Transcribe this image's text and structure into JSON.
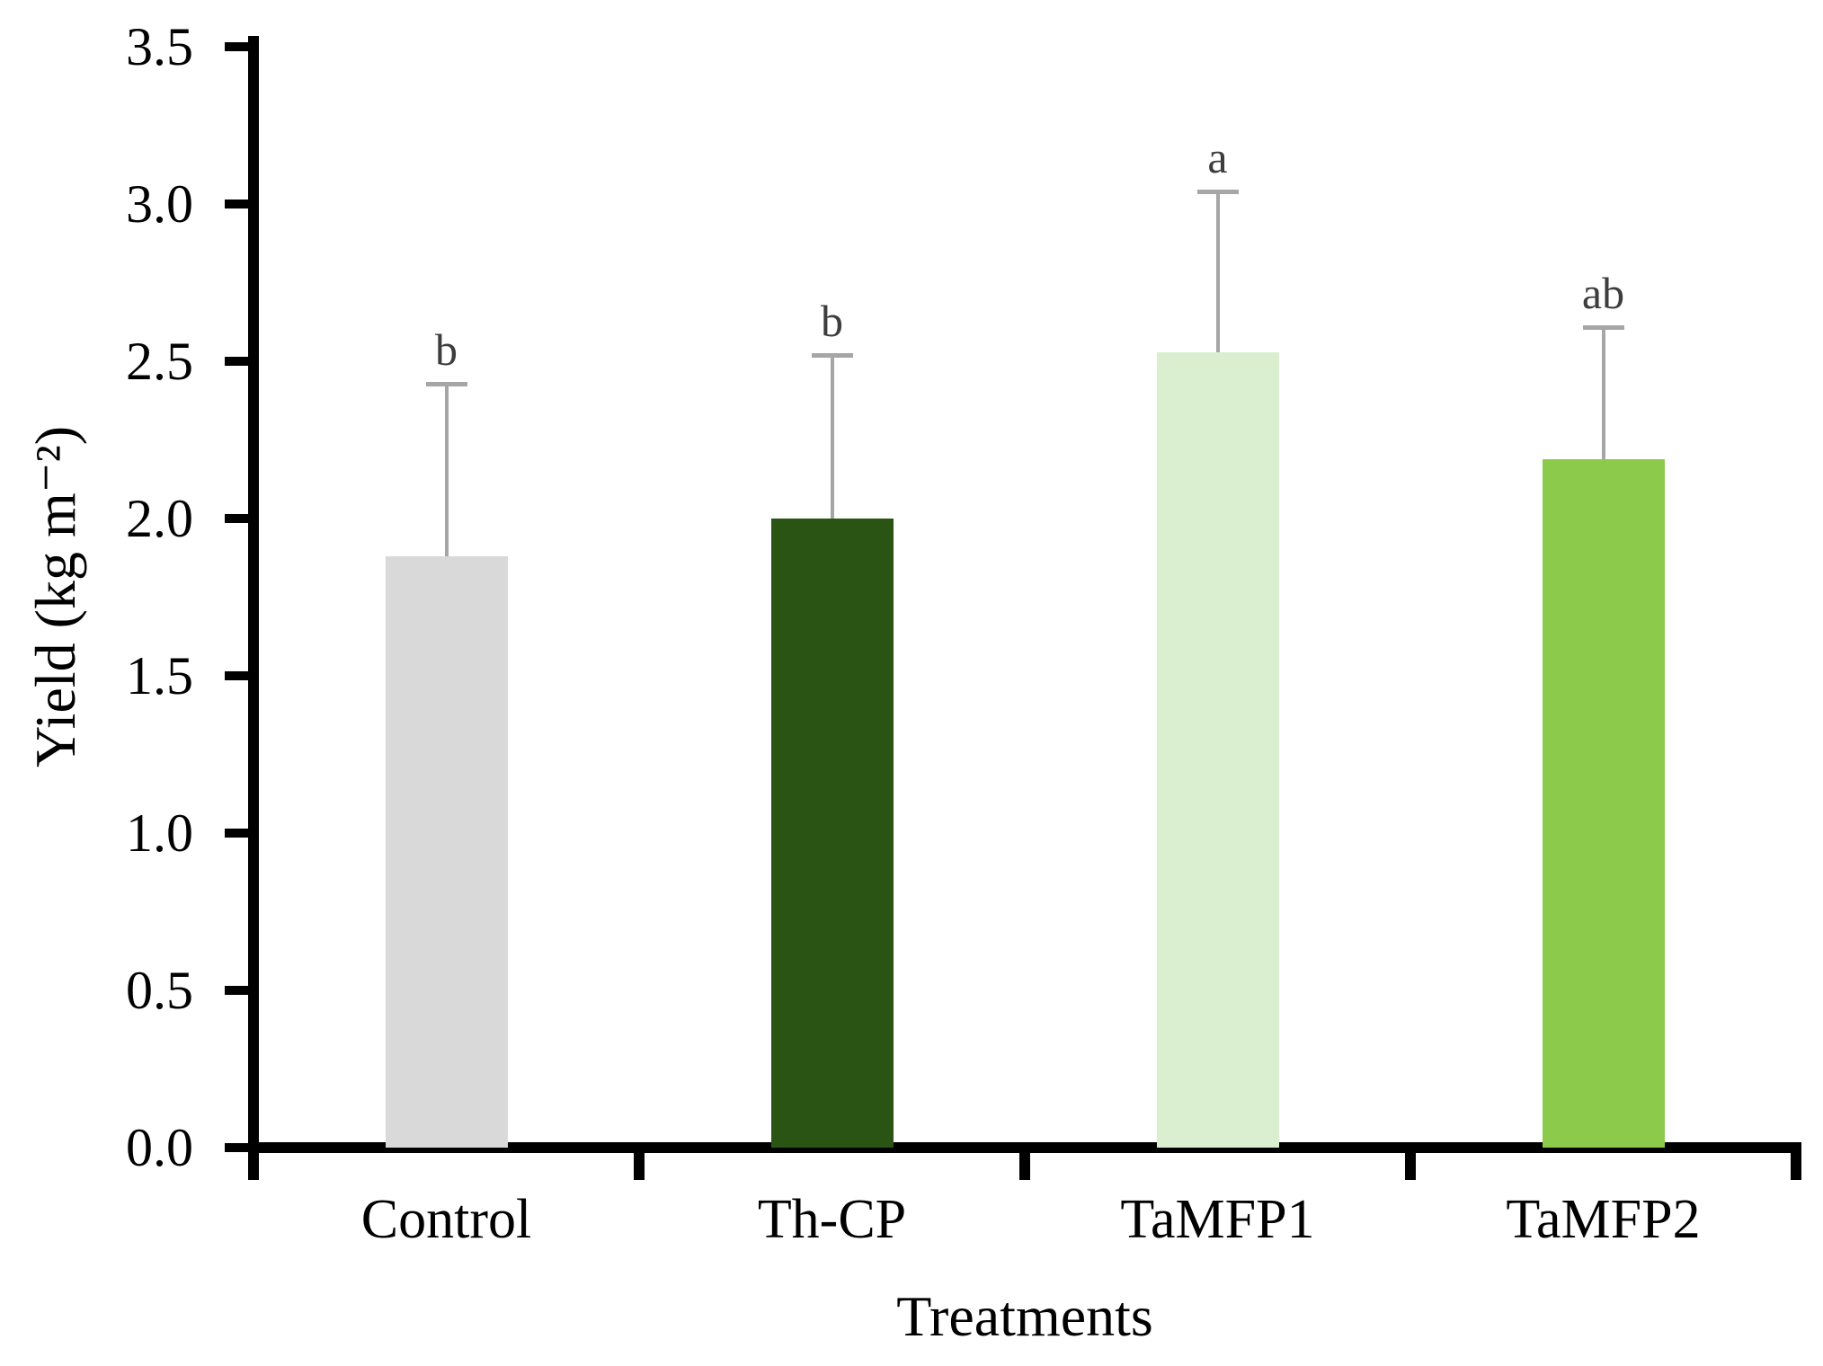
{
  "figure": {
    "background_color": "#ffffff",
    "axis_color": "#000000"
  },
  "chart_data": {
    "type": "bar",
    "title": "",
    "xlabel": "Treatments",
    "ylabel": "Yield (kg m⁻²)",
    "categories": [
      "Control",
      "Th-CP",
      "TaMFP1",
      "TaMFP2"
    ],
    "series": [
      {
        "name": "Yield",
        "values": [
          1.88,
          2.0,
          2.53,
          2.19
        ],
        "errors_upper": [
          0.55,
          0.52,
          0.51,
          0.42
        ]
      }
    ],
    "significance_letters": [
      "b",
      "b",
      "a",
      "ab"
    ],
    "bar_colors": [
      "#d9d9d9",
      "#2a5413",
      "#d9efd0",
      "#8cca4b"
    ],
    "ylim": [
      0,
      3.5
    ],
    "ytick_values": [
      0,
      0.5,
      1,
      1.5,
      2,
      2.5,
      3,
      3.5
    ],
    "ytick_labels": [
      "0.0",
      "0.5",
      "1.0",
      "1.5",
      "2.0",
      "2.5",
      "3.0",
      "3.5"
    ],
    "grid": false,
    "legend_position": "none",
    "error_bar_color": "#a6a6a6",
    "letter_color": "#3d3d3d"
  }
}
